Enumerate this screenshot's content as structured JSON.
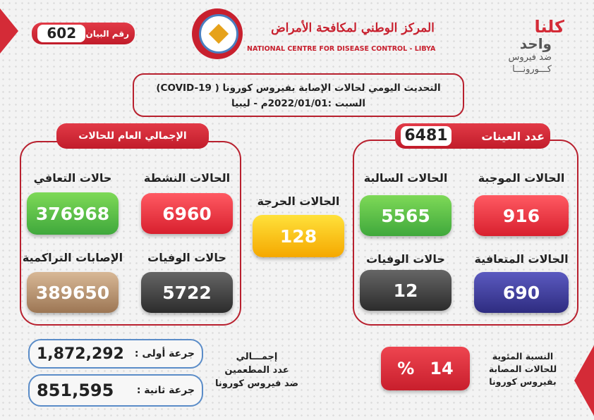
{
  "statement": {
    "label": "رقم البيان",
    "number": "602"
  },
  "logo": {
    "arabic": "المركز الوطني لمكافحة الأمراض",
    "english": "NATIONAL CENTRE FOR DISEASE CONTROL - LIBYA"
  },
  "campaign": {
    "line1": "كلنا",
    "line2": "واحد",
    "line3": "ضد فيروس",
    "line4": "كـــورونـــا"
  },
  "header": {
    "line1": "التحديث اليومي لحالات الإصابة بفيروس كورونا ( COVID-19)",
    "line2": "السبت :2022/01/01م - ليبيا"
  },
  "samples": {
    "label": "عدد العينات",
    "value": "6481",
    "cards": [
      {
        "label": "الحالات الموجبة",
        "value": "916",
        "color": "#e0303e"
      },
      {
        "label": "الحالات السالبة",
        "value": "5565",
        "color": "#4cb848"
      },
      {
        "label": "الحالات المتعافية",
        "value": "690",
        "color": "#3c3a93"
      },
      {
        "label": "حالات الوفيات",
        "value": "12",
        "color": "#3e3e3e"
      }
    ]
  },
  "critical": {
    "label": "الحالات الحرجة",
    "value": "128",
    "color": "#f5b800"
  },
  "totals": {
    "label": "الإجمالي العام للحالات",
    "cards": [
      {
        "label": "الحالات النشطة",
        "value": "6960",
        "color": "#e0303e"
      },
      {
        "label": "حالات التعافي",
        "value": "376968",
        "color": "#4cb848"
      },
      {
        "label": "حالات الوفيات",
        "value": "5722",
        "color": "#3e3e3e"
      },
      {
        "label": "الإصابات التراكمية",
        "value": "389650",
        "color": "#b08a6a"
      }
    ]
  },
  "vaccination": {
    "title_lines": [
      "إجمـــالي",
      "عدد المطعمين",
      "ضد فيروس كورونا"
    ],
    "dose1": {
      "label": "جرعة أولى :",
      "value": "1,872,292"
    },
    "dose2": {
      "label": "جرعة ثانية :",
      "value": "851,595"
    }
  },
  "percentage": {
    "label_lines": [
      "النسبة المئوية",
      "للحالات المصابة",
      "بفيروس كورونا"
    ],
    "value": "14",
    "unit": "%"
  }
}
